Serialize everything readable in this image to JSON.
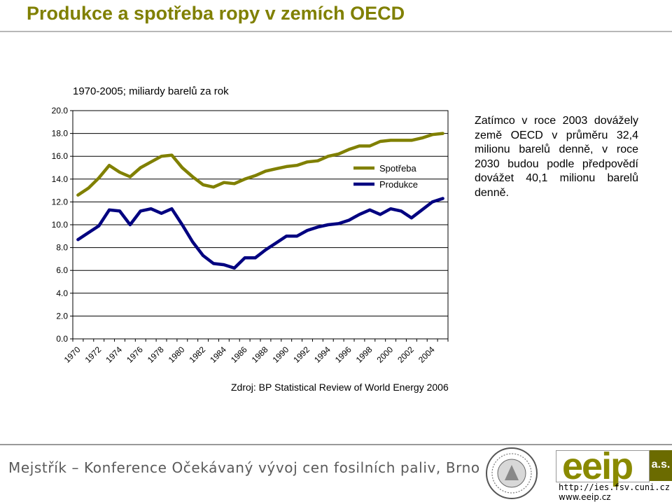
{
  "slide": {
    "title": "Produkce a spotřeba ropy v zemích OECD",
    "note": "Zatímco v roce 2003 dovážely země OECD v průměru 32,4 milionu barelů denně, v roce 2030 budou podle předpovědí dovážet 40,1 milionu barelů denně.",
    "source": "Zdroj: BP Statistical Review of World Energy 2006",
    "footer": "Mejstřík – Konference Očekávaný vývoj cen fosilních paliv, Brno",
    "logo": {
      "word": "eeip",
      "suffix": "a.s.",
      "url1": "http://ies.fsv.cuni.cz",
      "url2": "www.eeip.cz"
    }
  },
  "chart_data": {
    "type": "line",
    "title": "1970-2005; miliardy barelů za rok",
    "ylim": [
      0,
      20
    ],
    "yticks": [
      "0.0",
      "2.0",
      "4.0",
      "6.0",
      "8.0",
      "10.0",
      "12.0",
      "14.0",
      "16.0",
      "18.0",
      "20.0"
    ],
    "x": [
      1970,
      1971,
      1972,
      1973,
      1974,
      1975,
      1976,
      1977,
      1978,
      1979,
      1980,
      1981,
      1982,
      1983,
      1984,
      1985,
      1986,
      1987,
      1988,
      1989,
      1990,
      1991,
      1992,
      1993,
      1994,
      1995,
      1996,
      1997,
      1998,
      1999,
      2000,
      2001,
      2002,
      2003,
      2004,
      2005
    ],
    "xticks": [
      "1970",
      "1972",
      "1974",
      "1976",
      "1978",
      "1980",
      "1982",
      "1984",
      "1986",
      "1988",
      "1990",
      "1992",
      "1994",
      "1996",
      "1998",
      "2000",
      "2002",
      "2004"
    ],
    "grid": true,
    "legend": "inside-right",
    "series": [
      {
        "name": "Spotřeba",
        "color": "#808000",
        "values": [
          12.6,
          13.2,
          14.1,
          15.2,
          14.6,
          14.2,
          15.0,
          15.5,
          16.0,
          16.1,
          15.0,
          14.2,
          13.5,
          13.3,
          13.7,
          13.6,
          14.0,
          14.3,
          14.7,
          14.9,
          15.1,
          15.2,
          15.5,
          15.6,
          16.0,
          16.2,
          16.6,
          16.9,
          16.9,
          17.3,
          17.4,
          17.4,
          17.4,
          17.6,
          17.9,
          18.0
        ]
      },
      {
        "name": "Produkce",
        "color": "#000080",
        "values": [
          8.7,
          9.3,
          9.9,
          11.3,
          11.2,
          10.0,
          11.2,
          11.4,
          11.0,
          11.4,
          10.0,
          8.5,
          7.3,
          6.6,
          6.5,
          6.2,
          7.1,
          7.1,
          7.8,
          8.4,
          9.0,
          9.0,
          9.5,
          9.8,
          10.0,
          10.1,
          10.4,
          10.9,
          11.3,
          10.9,
          11.4,
          11.2,
          10.6,
          11.3,
          12.0,
          12.3
        ]
      }
    ]
  }
}
